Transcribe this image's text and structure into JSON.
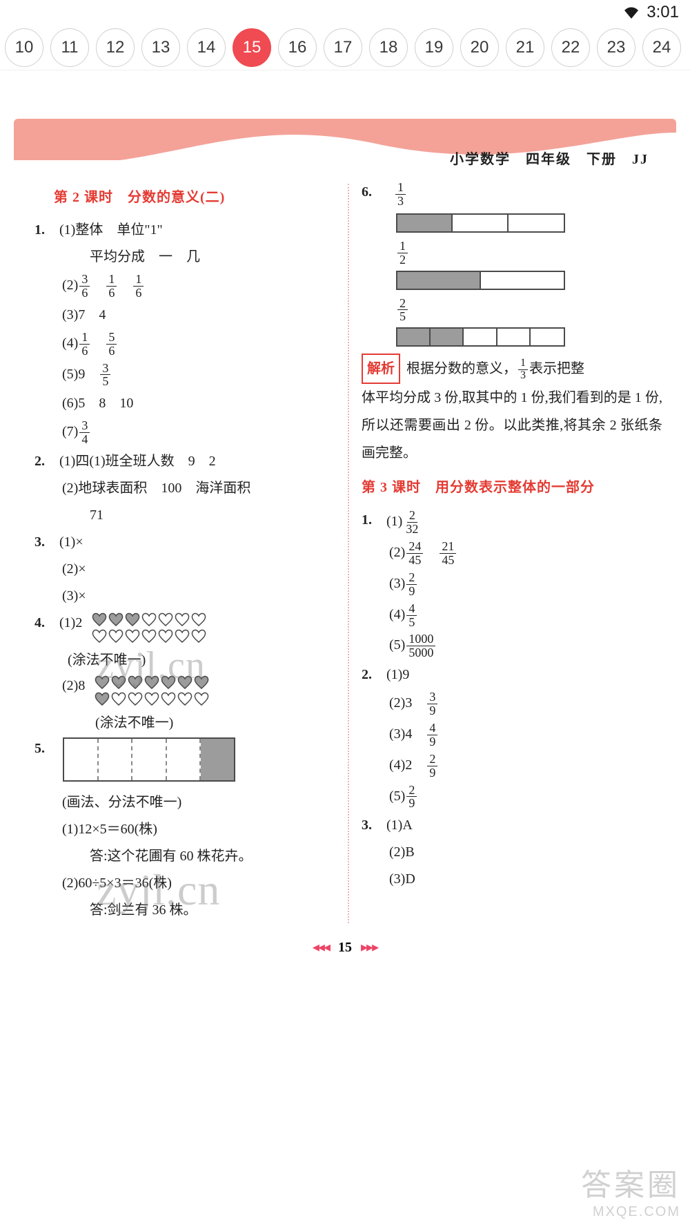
{
  "status": {
    "time": "3:01"
  },
  "tabs": {
    "numbers": [
      "10",
      "11",
      "12",
      "13",
      "14",
      "15",
      "16",
      "17",
      "18",
      "19",
      "20",
      "21",
      "22",
      "23",
      "24"
    ],
    "active_index": 5
  },
  "banner": {
    "subject": "小学数学",
    "grade": "四年级",
    "semester": "下册",
    "code": "JJ",
    "top_color": "#f4a298",
    "curve_color": "#ffffff"
  },
  "left": {
    "lesson_title": "第 2 课时　分数的意义(二)",
    "q1": {
      "s1a": "(1)整体　单位\"1\"",
      "s1b": "平均分成　一　几",
      "s2_label": "(2)",
      "s2_fr": [
        [
          "3",
          "6"
        ],
        [
          "1",
          "6"
        ],
        [
          "1",
          "6"
        ]
      ],
      "s3": "(3)7　4",
      "s4_label": "(4)",
      "s4_fr": [
        [
          "1",
          "6"
        ],
        [
          "5",
          "6"
        ]
      ],
      "s5_label": "(5)9",
      "s5_fr": [
        "3",
        "5"
      ],
      "s6": "(6)5　8　10",
      "s7_label": "(7)",
      "s7_fr": [
        "3",
        "4"
      ]
    },
    "q2": {
      "s1": "(1)四(1)班全班人数　9　2",
      "s2": "(2)地球表面积　100　海洋面积",
      "s2b": "71"
    },
    "q3": {
      "s1": "(1)×",
      "s2": "(2)×",
      "s3": "(3)×"
    },
    "q4": {
      "s1_label": "(1)2",
      "hearts1_row1": [
        1,
        1,
        1,
        0,
        0,
        0,
        0
      ],
      "hearts1_row2": [
        0,
        0,
        0,
        0,
        0,
        0,
        0
      ],
      "note1": "(涂法不唯一)",
      "s2_label": "(2)8",
      "hearts2_row1": [
        1,
        1,
        1,
        1,
        1,
        1,
        1
      ],
      "hearts2_row2": [
        1,
        0,
        0,
        0,
        0,
        0,
        0
      ],
      "note2": "(涂法不唯一)"
    },
    "q5": {
      "note": "(画法、分法不唯一)",
      "s1": "(1)12×5＝60(株)",
      "s1a": "答:这个花圃有 60 株花卉。",
      "s2": "(2)60÷5×3＝36(株)",
      "s2a": "答:剑兰有 36 株。"
    }
  },
  "right": {
    "q6": {
      "bars": [
        {
          "frac": [
            "1",
            "3"
          ],
          "total": 3,
          "filled": 1
        },
        {
          "frac": [
            "1",
            "2"
          ],
          "total": 2,
          "filled": 1
        },
        {
          "frac": [
            "2",
            "5"
          ],
          "total": 5,
          "filled": 2
        }
      ]
    },
    "analysis": {
      "tag": "解析",
      "pre": "根据分数的意义，",
      "frac": [
        "1",
        "3"
      ],
      "post": "表示把整",
      "rest": "体平均分成 3 份,取其中的 1 份,我们看到的是 1 份,所以还需要画出 2 份。以此类推,将其余 2 张纸条画完整。"
    },
    "lesson_title": "第 3 课时　用分数表示整体的一部分",
    "q1": {
      "s1_label": "(1)",
      "s1_fr": [
        "2",
        "32"
      ],
      "s2_label": "(2)",
      "s2_fr": [
        [
          "24",
          "45"
        ],
        [
          "21",
          "45"
        ]
      ],
      "s3_label": "(3)",
      "s3_fr": [
        "2",
        "9"
      ],
      "s4_label": "(4)",
      "s4_fr": [
        "4",
        "5"
      ],
      "s5_label": "(5)",
      "s5_fr": [
        "1000",
        "5000"
      ]
    },
    "q2": {
      "s1": "(1)9",
      "s2_label": "(2)3",
      "s2_fr": [
        "3",
        "9"
      ],
      "s3_label": "(3)4",
      "s3_fr": [
        "4",
        "9"
      ],
      "s4_label": "(4)2",
      "s4_fr": [
        "2",
        "9"
      ],
      "s5_label": "(5)",
      "s5_fr": [
        "2",
        "9"
      ]
    },
    "q3": {
      "s1": "(1)A",
      "s2": "(2)B",
      "s3": "(3)D"
    }
  },
  "footer": {
    "left_tri": "◂◂◂",
    "page": "15",
    "right_tri": "▸▸▸"
  },
  "watermark": {
    "text": "zyjl.cn",
    "br1": "答案圈",
    "br2": "MXQE.COM"
  },
  "colors": {
    "accent_red": "#e43b33",
    "tab_active": "#f04a52",
    "shade_gray": "#9c9c9c",
    "border_gray": "#4a4a4a"
  }
}
